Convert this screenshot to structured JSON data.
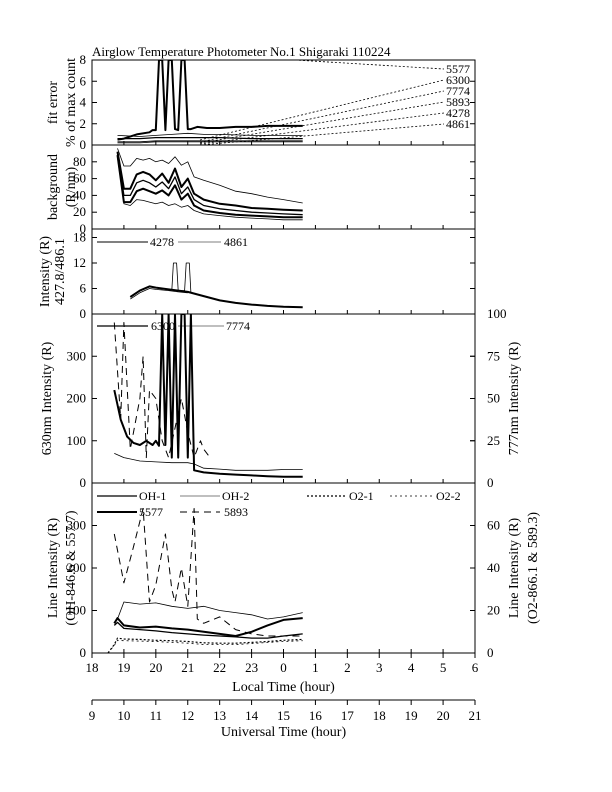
{
  "figure": {
    "title": "Airglow Temperature Photometer No.1  Shigaraki  110224"
  },
  "chart_data": {
    "type": "line",
    "x_axes": {
      "local": {
        "label": "Local Time (hour)",
        "range": [
          18,
          30
        ],
        "ticks": [
          18,
          19,
          20,
          21,
          22,
          23,
          24,
          25,
          26,
          27,
          28,
          29,
          30
        ],
        "tick_labels": [
          "18",
          "19",
          "20",
          "21",
          "22",
          "23",
          "0",
          "1",
          "2",
          "3",
          "4",
          "5",
          "6"
        ]
      },
      "universal": {
        "label": "Universal Time (hour)",
        "range": [
          9,
          21
        ],
        "ticks": [
          9,
          10,
          11,
          12,
          13,
          14,
          15,
          16,
          17,
          18,
          19,
          20,
          21
        ],
        "tick_labels": [
          "9",
          "10",
          "11",
          "12",
          "13",
          "14",
          "15",
          "16",
          "17",
          "18",
          "19",
          "20",
          "21"
        ]
      }
    },
    "panels": [
      {
        "id": "fit",
        "ylabel_lines": [
          "fit error",
          "% of max count"
        ],
        "ylim": [
          0,
          8
        ],
        "yticks": [
          0,
          2,
          4,
          6,
          8
        ],
        "legend_items": [
          {
            "name": "5577"
          },
          {
            "name": "6300"
          },
          {
            "name": "7774"
          },
          {
            "name": "5893"
          },
          {
            "name": "4278"
          },
          {
            "name": "4861"
          }
        ],
        "series": [
          {
            "style": "thick",
            "x": [
              18.8,
              19.0,
              19.4,
              19.8,
              19.9,
              20.0,
              20.1,
              20.2,
              20.3,
              20.4,
              20.5,
              20.6,
              20.7,
              20.8,
              20.9,
              21.0,
              21.1,
              21.3,
              21.6,
              22.0,
              22.5,
              23.0,
              23.5,
              24.0,
              24.6
            ],
            "y": [
              0.5,
              0.6,
              1.0,
              1.2,
              1.4,
              1.4,
              8.0,
              8.0,
              1.4,
              8.0,
              8.0,
              1.5,
              1.4,
              8.0,
              8.0,
              1.5,
              1.5,
              1.7,
              1.6,
              1.6,
              1.7,
              1.7,
              1.8,
              1.8,
              1.8
            ]
          },
          {
            "style": "thin",
            "x": [
              18.8,
              19.5,
              20.0,
              20.5,
              21.0,
              21.5,
              22.0,
              23.0,
              24.0,
              24.6
            ],
            "y": [
              0.9,
              0.8,
              0.9,
              1.0,
              1.1,
              1.0,
              1.0,
              0.9,
              0.9,
              0.9
            ]
          },
          {
            "style": "medium",
            "x": [
              18.8,
              19.5,
              20.0,
              21.0,
              22.0,
              23.0,
              24.0,
              24.6
            ],
            "y": [
              0.6,
              0.6,
              0.7,
              0.7,
              0.7,
              0.6,
              0.6,
              0.6
            ]
          },
          {
            "style": "thin",
            "x": [
              18.8,
              19.5,
              20.0,
              21.0,
              22.0,
              23.0,
              24.0,
              24.6
            ],
            "y": [
              0.3,
              0.3,
              0.4,
              0.4,
              0.4,
              0.4,
              0.4,
              0.4
            ]
          },
          {
            "style": "thin",
            "x": [
              18.8,
              19.5,
              20.0,
              21.0,
              22.0,
              23.0,
              24.0,
              24.6
            ],
            "y": [
              0.2,
              0.2,
              0.3,
              0.3,
              0.3,
              0.3,
              0.3,
              0.3
            ]
          }
        ]
      },
      {
        "id": "bg",
        "ylabel_lines": [
          "background",
          "(R/nm)"
        ],
        "ylim": [
          0,
          100
        ],
        "yticks": [
          0,
          20,
          40,
          60,
          80
        ],
        "series": [
          {
            "style": "thin",
            "x": [
              18.8,
              19.0,
              19.2,
              19.4,
              19.6,
              19.8,
              20.0,
              20.2,
              20.4,
              20.6,
              20.8,
              21.0,
              21.2,
              21.5,
              22.0,
              22.5,
              23.0,
              23.5,
              24.0,
              24.6
            ],
            "y": [
              96,
              75,
              75,
              84,
              82,
              84,
              80,
              82,
              78,
              86,
              76,
              80,
              62,
              58,
              52,
              45,
              42,
              38,
              35,
              31
            ]
          },
          {
            "style": "thick",
            "x": [
              18.8,
              19.0,
              19.2,
              19.4,
              19.6,
              19.8,
              20.0,
              20.2,
              20.4,
              20.6,
              20.8,
              21.0,
              21.2,
              21.5,
              22.0,
              22.5,
              23.0,
              23.5,
              24.0,
              24.6
            ],
            "y": [
              92,
              48,
              48,
              65,
              68,
              65,
              58,
              66,
              55,
              72,
              50,
              60,
              42,
              35,
              30,
              28,
              25,
              24,
              23,
              22
            ]
          },
          {
            "style": "medium",
            "x": [
              18.8,
              19.0,
              19.2,
              19.4,
              19.6,
              19.8,
              20.0,
              20.2,
              20.4,
              20.6,
              20.8,
              21.0,
              21.2,
              21.5,
              22.0,
              22.5,
              23.0,
              23.5,
              24.0,
              24.6
            ],
            "y": [
              90,
              40,
              40,
              55,
              58,
              55,
              50,
              56,
              48,
              62,
              42,
              50,
              35,
              28,
              24,
              22,
              20,
              19,
              18,
              17
            ]
          },
          {
            "style": "thick",
            "x": [
              18.8,
              19.0,
              19.2,
              19.4,
              19.6,
              19.8,
              20.0,
              20.2,
              20.4,
              20.6,
              20.8,
              21.0,
              21.2,
              21.5,
              22.0,
              22.5,
              23.0,
              23.5,
              24.0,
              24.6
            ],
            "y": [
              88,
              32,
              32,
              45,
              48,
              45,
              42,
              46,
              40,
              52,
              35,
              42,
              28,
              22,
              19,
              17,
              16,
              15,
              14,
              14
            ]
          },
          {
            "style": "thin",
            "x": [
              18.8,
              19.0,
              19.2,
              19.4,
              19.6,
              19.8,
              20.0,
              20.2,
              20.4,
              20.6,
              20.8,
              21.0,
              21.2,
              21.5,
              22.0,
              22.5,
              23.0,
              23.5,
              24.0,
              24.6
            ],
            "y": [
              85,
              30,
              28,
              35,
              34,
              32,
              30,
              32,
              28,
              30,
              26,
              28,
              22,
              18,
              16,
              14,
              13,
              12,
              11,
              11
            ]
          }
        ]
      },
      {
        "id": "blue",
        "ylabel_lines": [
          "Intensity (R)",
          "427.8/486.1"
        ],
        "ylim": [
          0,
          20
        ],
        "yticks": [
          0,
          6,
          12,
          18
        ],
        "legend_items": [
          {
            "name": "4278"
          },
          {
            "name": "4861"
          }
        ],
        "series": [
          {
            "style": "thick",
            "x": [
              19.2,
              19.5,
              19.8,
              20.0,
              20.4,
              20.7,
              21.0,
              21.5,
              22.0,
              22.5,
              23.0,
              23.5,
              24.0,
              24.6
            ],
            "y": [
              4.0,
              5.5,
              6.5,
              6.2,
              5.8,
              5.5,
              5.2,
              4.2,
              3.2,
              2.6,
              2.2,
              1.9,
              1.7,
              1.6
            ]
          },
          {
            "style": "thin",
            "x": [
              19.2,
              19.5,
              19.8,
              20.0,
              20.4,
              20.7,
              21.0
            ],
            "y": [
              3.5,
              5.0,
              6.0,
              5.8,
              5.5,
              5.2,
              5.0
            ]
          },
          {
            "style": "thin",
            "x": [
              20.5,
              20.55,
              20.65,
              20.7,
              20.9,
              20.95,
              21.05,
              21.1
            ],
            "y": [
              5.5,
              12.0,
              12.0,
              5.5,
              5.5,
              12.0,
              12.0,
              5.0
            ]
          }
        ]
      },
      {
        "id": "red",
        "ylabel_text": "630nm Intensity (R)",
        "ylabel_right_text": "777nm Intensity (R)",
        "ylim": [
          0,
          400
        ],
        "yticks": [
          0,
          100,
          200,
          300
        ],
        "ylim_right": [
          0,
          100
        ],
        "yticks_right": [
          0,
          25,
          50,
          75,
          100
        ],
        "legend_items": [
          {
            "name": "6300"
          },
          {
            "name": "7774"
          }
        ],
        "series": [
          {
            "style": "thick",
            "x": [
              18.7,
              18.9,
              19.1,
              19.3,
              19.5,
              19.7,
              19.9,
              20.0,
              20.1,
              20.2,
              20.3,
              20.4,
              20.5,
              20.6,
              20.7,
              20.8,
              20.9,
              21.0,
              21.1,
              21.2,
              21.5,
              22.0,
              22.5,
              23.0,
              23.5,
              24.0,
              24.6
            ],
            "y": [
              220,
              150,
              110,
              95,
              90,
              100,
              90,
              100,
              88,
              400,
              90,
              400,
              60,
              400,
              60,
              400,
              400,
              60,
              400,
              30,
              25,
              22,
              20,
              18,
              16,
              15,
              15
            ]
          },
          {
            "style": "thin",
            "x": [
              18.7,
              19.0,
              19.5,
              20.0,
              20.5,
              21.0,
              21.2,
              21.5,
              22.0,
              22.5,
              23.0,
              23.5,
              24.0,
              24.6
            ],
            "y": [
              70,
              60,
              52,
              50,
              48,
              48,
              45,
              35,
              33,
              30,
              30,
              30,
              32,
              32
            ]
          },
          {
            "style": "dash",
            "x": [
              18.7,
              18.9,
              19.0,
              19.2,
              19.5,
              19.6,
              19.7,
              19.8,
              20.0,
              20.2,
              20.4,
              20.6,
              20.8,
              21.0,
              21.2,
              21.4,
              21.5,
              21.7
            ],
            "y": [
              380,
              150,
              380,
              80,
              200,
              300,
              60,
              220,
              200,
              100,
              60,
              130,
              200,
              120,
              60,
              100,
              80,
              60
            ]
          }
        ]
      },
      {
        "id": "line",
        "ylabel_lines": [
          "Line Intensity (R)",
          "(OH-846.6 & 557.7)"
        ],
        "ylabel_right_lines": [
          "Line Intensity (R)",
          "(O2-866.1 & 589.3)"
        ],
        "ylim": [
          0,
          400
        ],
        "yticks": [
          0,
          100,
          200,
          300
        ],
        "ylim_right": [
          0,
          80
        ],
        "yticks_right": [
          0,
          20,
          40,
          60
        ],
        "legend_row1": [
          {
            "name": "OH-1"
          },
          {
            "name": "OH-2"
          },
          {
            "name": "O2-1"
          },
          {
            "name": "O2-2"
          }
        ],
        "legend_row2": [
          {
            "name": "5577"
          },
          {
            "name": "5893"
          }
        ],
        "series": [
          {
            "style": "thin",
            "x": [
              18.7,
              18.8,
              19.0,
              19.5,
              20.0,
              20.5,
              21.0,
              21.5,
              22.0,
              22.5,
              23.0,
              23.5,
              24.0,
              24.6
            ],
            "y": [
              70,
              80,
              120,
              115,
              118,
              110,
              105,
              110,
              100,
              95,
              90,
              80,
              85,
              95
            ]
          },
          {
            "style": "thick",
            "x": [
              18.7,
              18.8,
              19.0,
              19.5,
              20.0,
              20.5,
              21.0,
              21.5,
              22.0,
              22.5,
              23.0,
              23.5,
              24.0,
              24.6
            ],
            "y": [
              70,
              82,
              65,
              60,
              62,
              58,
              55,
              50,
              45,
              40,
              50,
              65,
              78,
              82
            ]
          },
          {
            "style": "medium",
            "x": [
              18.7,
              18.8,
              19.0,
              19.5,
              20.0,
              20.5,
              21.0,
              21.5,
              22.0,
              22.5,
              23.0,
              23.5,
              24.0,
              24.6
            ],
            "y": [
              65,
              72,
              58,
              55,
              52,
              48,
              45,
              42,
              40,
              38,
              35,
              35,
              40,
              45
            ]
          },
          {
            "style": "dash",
            "x": [
              18.7,
              19.0,
              19.3,
              19.6,
              19.8,
              20.0,
              20.3,
              20.5,
              20.6,
              20.8,
              21.0,
              21.2,
              21.3,
              21.5,
              22.0,
              22.5,
              23.0,
              23.5,
              24.0,
              24.6
            ],
            "y": [
              280,
              165,
              250,
              340,
              120,
              160,
              280,
              150,
              120,
              200,
              110,
              340,
              80,
              70,
              85,
              55,
              45,
              40,
              40,
              40
            ]
          },
          {
            "style": "dot-thick",
            "x": [
              18.5,
              18.7,
              18.8,
              19.0,
              19.5,
              20.0,
              20.5,
              21.0,
              21.5,
              22.0,
              22.5,
              23.0,
              23.5,
              24.0,
              24.6
            ],
            "y": [
              0,
              20,
              35,
              33,
              32,
              30,
              29,
              27,
              24,
              23,
              23,
              25,
              27,
              30,
              32
            ]
          },
          {
            "style": "dot-thin",
            "x": [
              18.5,
              18.7,
              18.8,
              19.0,
              19.5,
              20.0,
              20.5,
              21.0,
              21.5,
              22.0,
              22.5,
              23.0,
              23.5,
              24.0,
              24.6
            ],
            "y": [
              0,
              18,
              30,
              29,
              28,
              27,
              25,
              23,
              20,
              20,
              20,
              22,
              25,
              27,
              29
            ]
          }
        ]
      }
    ]
  }
}
